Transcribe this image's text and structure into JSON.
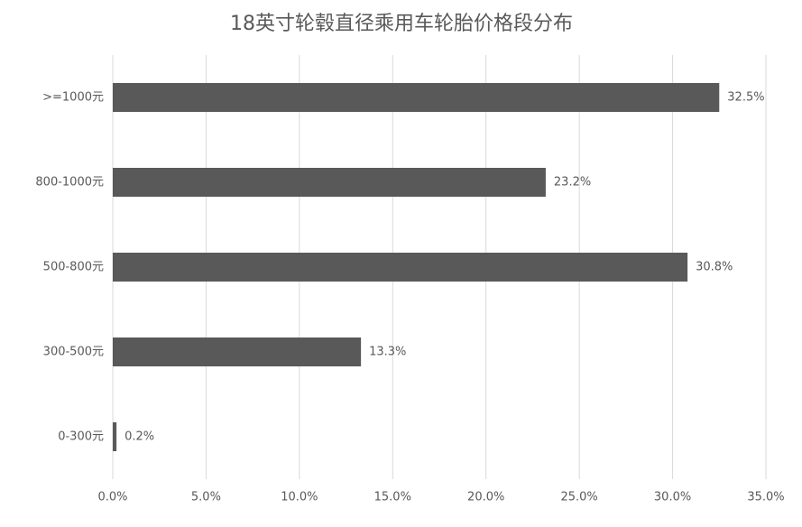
{
  "chart_data": {
    "type": "hbar",
    "title": "18英寸轮毂直径乘用车轮胎价格段分布",
    "categories": [
      ">=1000元",
      "800-1000元",
      "500-800元",
      "300-500元",
      "0-300元"
    ],
    "values": [
      32.5,
      23.2,
      30.8,
      13.3,
      0.2
    ],
    "value_labels": [
      "32.5%",
      "23.2%",
      "30.8%",
      "13.3%",
      "0.2%"
    ],
    "color": "#595959",
    "xlim": [
      0,
      35
    ],
    "xticks": [
      {
        "value": 0,
        "label": "0.0%"
      },
      {
        "value": 5,
        "label": "5.0%"
      },
      {
        "value": 10,
        "label": "10.0%"
      },
      {
        "value": 15,
        "label": "15.0%"
      },
      {
        "value": 20,
        "label": "20.0%"
      },
      {
        "value": 25,
        "label": "25.0%"
      },
      {
        "value": 30,
        "label": "30.0%"
      },
      {
        "value": 35,
        "label": "35.0%"
      }
    ],
    "grid": true
  }
}
